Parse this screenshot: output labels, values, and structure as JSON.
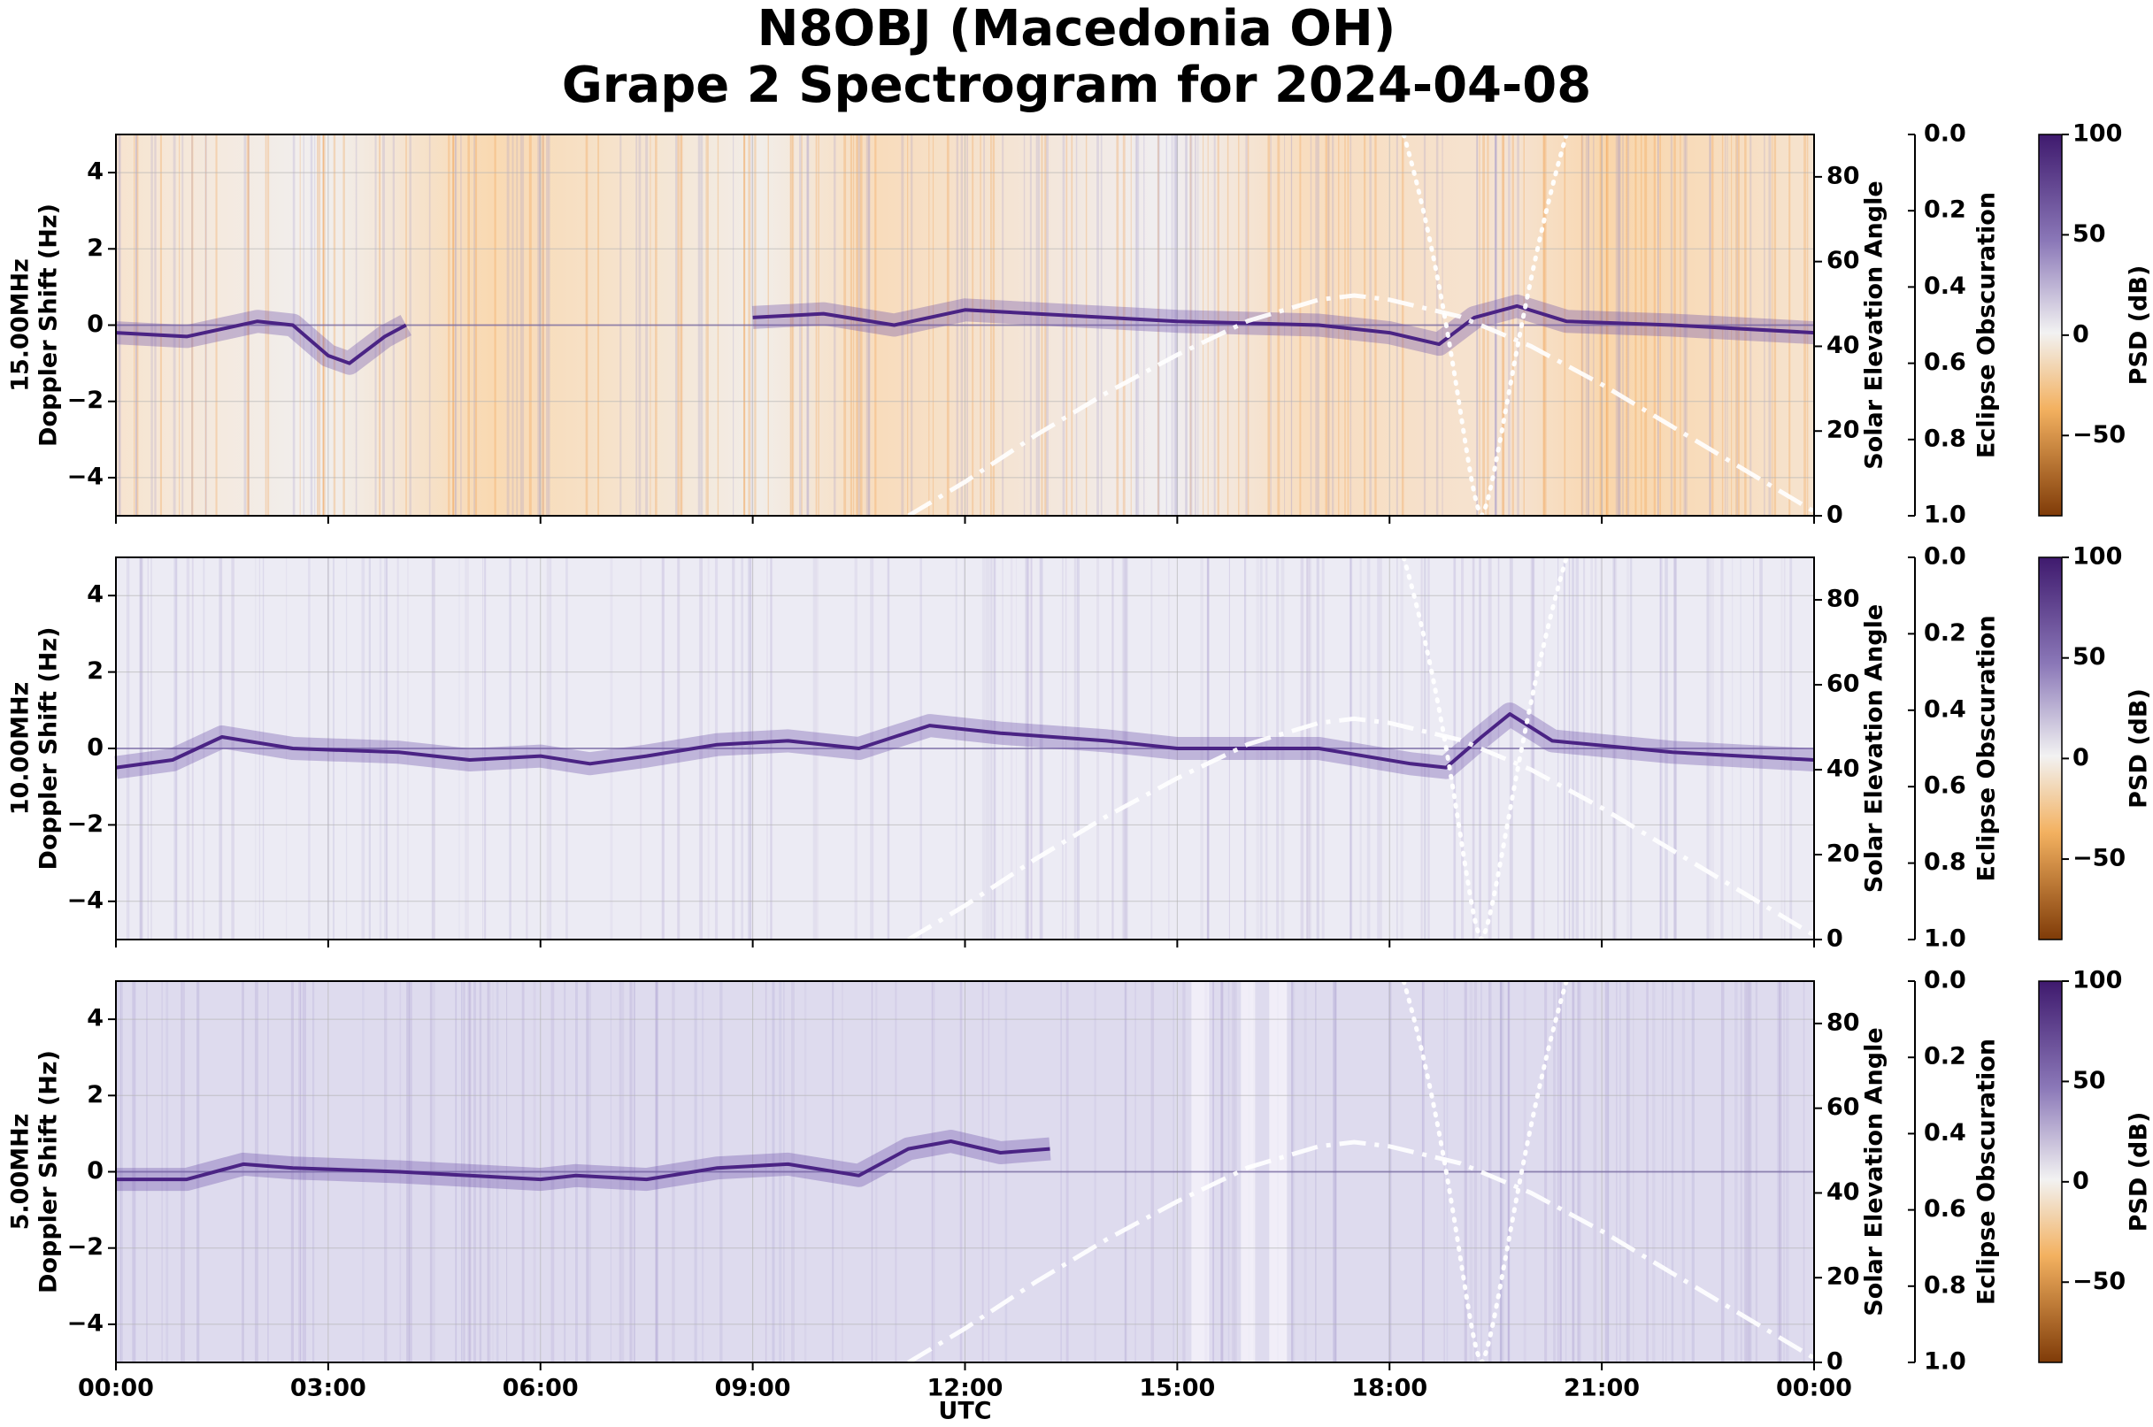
{
  "title": "N8OBJ (Macedonia OH)",
  "subtitle": "Grape 2 Spectrogram for 2024-04-08",
  "chart_data": [
    {
      "type": "heatmap",
      "band_label": "15.00MHz",
      "ylabel": "Doppler Shift (Hz)",
      "ylabel2": "Solar Elevation Angle",
      "ylabel3": "Eclipse Obscuration",
      "colorbar_label": "PSD (dB)",
      "background_tone": "orange",
      "x": [
        "00:00",
        "03:00",
        "06:00",
        "09:00",
        "12:00",
        "15:00",
        "18:00",
        "21:00",
        "00:00"
      ],
      "y_ticks": [
        -4,
        -2,
        0,
        2,
        4
      ],
      "ylim": [
        -5,
        5
      ],
      "elev_ticks": [
        0,
        20,
        40,
        60,
        80
      ],
      "elev_lim": [
        0,
        90
      ],
      "obsc_ticks": [
        "0.0",
        "0.2",
        "0.4",
        "0.6",
        "0.8",
        "1.0"
      ],
      "cbar_ticks": [
        100,
        50,
        0,
        -50
      ],
      "doppler_trace_hz": [
        [
          0,
          -0.2
        ],
        [
          1,
          -0.3
        ],
        [
          2,
          0.1
        ],
        [
          2.5,
          0.0
        ],
        [
          3,
          -0.8
        ],
        [
          3.3,
          -1.0
        ],
        [
          3.8,
          -0.3
        ],
        [
          4.1,
          0.0
        ],
        [
          5.5,
          null
        ],
        [
          9,
          0.2
        ],
        [
          10,
          0.3
        ],
        [
          11,
          0.0
        ],
        [
          12,
          0.4
        ],
        [
          13,
          0.3
        ],
        [
          15,
          0.1
        ],
        [
          17,
          0.0
        ],
        [
          18,
          -0.2
        ],
        [
          18.7,
          -0.5
        ],
        [
          19.2,
          0.2
        ],
        [
          19.8,
          0.5
        ],
        [
          20.5,
          0.1
        ],
        [
          22,
          0.0
        ],
        [
          24,
          -0.2
        ]
      ]
    },
    {
      "type": "heatmap",
      "band_label": "10.00MHz",
      "ylabel": "Doppler Shift (Hz)",
      "ylabel2": "Solar Elevation Angle",
      "ylabel3": "Eclipse Obscuration",
      "colorbar_label": "PSD (dB)",
      "background_tone": "lavender",
      "x": [
        "00:00",
        "03:00",
        "06:00",
        "09:00",
        "12:00",
        "15:00",
        "18:00",
        "21:00",
        "00:00"
      ],
      "y_ticks": [
        -4,
        -2,
        0,
        2,
        4
      ],
      "ylim": [
        -5,
        5
      ],
      "elev_ticks": [
        0,
        20,
        40,
        60,
        80
      ],
      "elev_lim": [
        0,
        90
      ],
      "obsc_ticks": [
        "0.0",
        "0.2",
        "0.4",
        "0.6",
        "0.8",
        "1.0"
      ],
      "cbar_ticks": [
        100,
        50,
        0,
        -50
      ],
      "doppler_trace_hz": [
        [
          0,
          -0.5
        ],
        [
          0.8,
          -0.3
        ],
        [
          1.5,
          0.3
        ],
        [
          2.5,
          0.0
        ],
        [
          4,
          -0.1
        ],
        [
          5,
          -0.3
        ],
        [
          6,
          -0.2
        ],
        [
          6.7,
          -0.4
        ],
        [
          7.5,
          -0.2
        ],
        [
          8.5,
          0.1
        ],
        [
          9.5,
          0.2
        ],
        [
          10.5,
          0.0
        ],
        [
          11,
          0.3
        ],
        [
          11.5,
          0.6
        ],
        [
          12.5,
          0.4
        ],
        [
          14,
          0.2
        ],
        [
          15,
          0.0
        ],
        [
          17,
          0.0
        ],
        [
          18.3,
          -0.4
        ],
        [
          18.8,
          -0.5
        ],
        [
          19.3,
          0.3
        ],
        [
          19.7,
          0.9
        ],
        [
          20.3,
          0.2
        ],
        [
          22,
          -0.1
        ],
        [
          24,
          -0.3
        ]
      ]
    },
    {
      "type": "heatmap",
      "band_label": "5.00MHz",
      "ylabel": "Doppler Shift (Hz)",
      "ylabel2": "Solar Elevation Angle",
      "ylabel3": "Eclipse Obscuration",
      "colorbar_label": "PSD (dB)",
      "background_tone": "lavender",
      "x": [
        "00:00",
        "03:00",
        "06:00",
        "09:00",
        "12:00",
        "15:00",
        "18:00",
        "21:00",
        "00:00"
      ],
      "y_ticks": [
        -4,
        -2,
        0,
        2,
        4
      ],
      "ylim": [
        -5,
        5
      ],
      "elev_ticks": [
        0,
        20,
        40,
        60,
        80
      ],
      "elev_lim": [
        0,
        90
      ],
      "obsc_ticks": [
        "0.0",
        "0.2",
        "0.4",
        "0.6",
        "0.8",
        "1.0"
      ],
      "cbar_ticks": [
        100,
        50,
        0,
        -50
      ],
      "doppler_trace_hz": [
        [
          0,
          -0.2
        ],
        [
          1,
          -0.2
        ],
        [
          1.8,
          0.2
        ],
        [
          2.5,
          0.1
        ],
        [
          4,
          0.0
        ],
        [
          5,
          -0.1
        ],
        [
          6,
          -0.2
        ],
        [
          6.5,
          -0.1
        ],
        [
          7.5,
          -0.2
        ],
        [
          8.5,
          0.1
        ],
        [
          9.5,
          0.2
        ],
        [
          10.5,
          -0.1
        ],
        [
          11.2,
          0.6
        ],
        [
          11.8,
          0.8
        ],
        [
          12.5,
          0.5
        ],
        [
          13.2,
          0.6
        ]
      ]
    }
  ],
  "solar_elevation_deg": [
    [
      11.2,
      0
    ],
    [
      12,
      8
    ],
    [
      13,
      19
    ],
    [
      14,
      29
    ],
    [
      15,
      38
    ],
    [
      16,
      46
    ],
    [
      17,
      51
    ],
    [
      17.5,
      52
    ],
    [
      18,
      51
    ],
    [
      19,
      47
    ],
    [
      20,
      40
    ],
    [
      21,
      31
    ],
    [
      22,
      21
    ],
    [
      23,
      11
    ],
    [
      24,
      1
    ]
  ],
  "xlabel": "UTC",
  "colors": {
    "high": "#3f1a6e",
    "mid": "#8b78b8",
    "zero": "#f2f2f2",
    "neg": "#f3b160",
    "low": "#7f3b08"
  }
}
